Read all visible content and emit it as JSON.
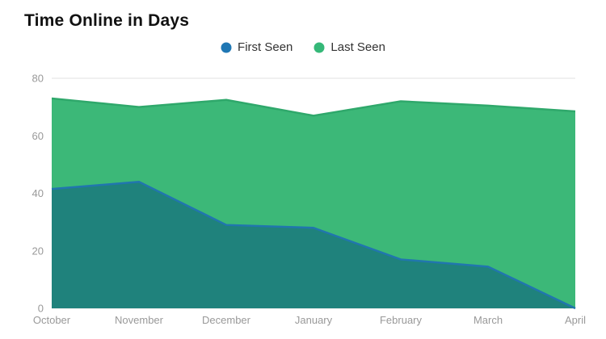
{
  "title": "Time Online in Days",
  "legend": {
    "items": [
      {
        "label": "First Seen",
        "color": "#1f77b4"
      },
      {
        "label": "Last Seen",
        "color": "#35b878"
      }
    ]
  },
  "chart_data": {
    "type": "area",
    "title": "Time Online in Days",
    "categories": [
      "October",
      "November",
      "December",
      "January",
      "February",
      "March",
      "April"
    ],
    "series": [
      {
        "name": "First Seen",
        "line_color": "#2176ae",
        "fill_color": "#1f827c",
        "values": [
          41.5,
          44,
          29,
          28,
          17,
          14.5,
          0
        ]
      },
      {
        "name": "Last Seen",
        "line_color": "#2fa86b",
        "fill_color": "#3cb878",
        "values": [
          73,
          70,
          72.5,
          67,
          72,
          70.5,
          68.5
        ]
      }
    ],
    "xlabel": "",
    "ylabel": "",
    "ylim": [
      0,
      80
    ],
    "yticks": [
      0,
      20,
      40,
      60,
      80
    ],
    "grid": true,
    "legend_position": "top",
    "axis_label_color": "#999999",
    "gridline_color": "#e0e0e0"
  }
}
